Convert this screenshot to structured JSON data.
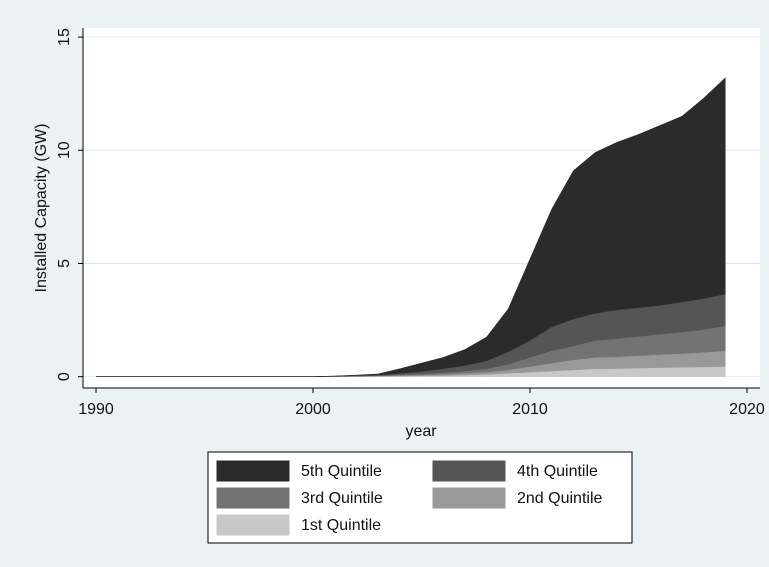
{
  "chart_data": {
    "type": "stacked-area",
    "x_label": "year",
    "y_label": "Installed Capacity (GW)",
    "x": [
      1990,
      1991,
      1992,
      1993,
      1994,
      1995,
      1996,
      1997,
      1998,
      1999,
      2000,
      2001,
      2002,
      2003,
      2004,
      2005,
      2006,
      2007,
      2008,
      2009,
      2010,
      2011,
      2012,
      2013,
      2014,
      2015,
      2016,
      2017,
      2018,
      2019
    ],
    "series": [
      {
        "name": "5th Quintile",
        "color": "#2b2b2b",
        "values": [
          0,
          0,
          0,
          0,
          0,
          0,
          0,
          0,
          0,
          0,
          0,
          0.01,
          0.02,
          0.04,
          0.2,
          0.37,
          0.5,
          0.7,
          1.05,
          1.9,
          3.6,
          5.2,
          6.55,
          7.1,
          7.4,
          7.65,
          7.95,
          8.2,
          8.85,
          9.55
        ]
      },
      {
        "name": "4th Quintile",
        "color": "#555555",
        "values": [
          0,
          0,
          0,
          0,
          0,
          0,
          0,
          0,
          0,
          0,
          0,
          0.005,
          0.02,
          0.03,
          0.06,
          0.1,
          0.17,
          0.25,
          0.35,
          0.55,
          0.75,
          1.05,
          1.2,
          1.2,
          1.27,
          1.27,
          1.27,
          1.33,
          1.37,
          1.4
        ]
      },
      {
        "name": "3rd Quintile",
        "color": "#737373",
        "values": [
          0,
          0,
          0,
          0,
          0,
          0,
          0,
          0,
          0,
          0,
          0,
          0.005,
          0.01,
          0.015,
          0.03,
          0.05,
          0.07,
          0.1,
          0.15,
          0.25,
          0.4,
          0.55,
          0.6,
          0.75,
          0.8,
          0.85,
          0.9,
          0.95,
          1.0,
          1.1
        ]
      },
      {
        "name": "2nd Quintile",
        "color": "#999999",
        "values": [
          0,
          0,
          0,
          0,
          0,
          0,
          0,
          0,
          0,
          0,
          0,
          0.005,
          0.01,
          0.015,
          0.03,
          0.04,
          0.06,
          0.08,
          0.1,
          0.15,
          0.25,
          0.35,
          0.45,
          0.5,
          0.52,
          0.55,
          0.58,
          0.6,
          0.65,
          0.7
        ]
      },
      {
        "name": "1st Quintile",
        "color": "#c8c8c8",
        "values": [
          0,
          0,
          0,
          0,
          0,
          0,
          0,
          0,
          0,
          0,
          0,
          0.005,
          0.01,
          0.02,
          0.03,
          0.04,
          0.05,
          0.07,
          0.1,
          0.15,
          0.2,
          0.25,
          0.3,
          0.35,
          0.36,
          0.38,
          0.4,
          0.42,
          0.43,
          0.45
        ]
      }
    ],
    "xlim": [
      1989.4,
      2020.6
    ],
    "xticks": [
      1990,
      2000,
      2010,
      2020
    ],
    "ylim": [
      -0.5,
      15.4
    ],
    "yticks": [
      0,
      5,
      10,
      15
    ],
    "grid": true
  }
}
